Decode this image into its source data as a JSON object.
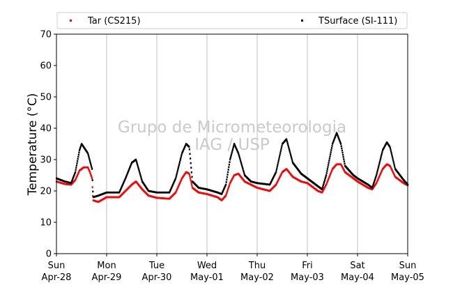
{
  "chart_data": {
    "type": "scatter",
    "title": "",
    "xlabel": "",
    "ylabel": "Temperature (°C)",
    "ylim": [
      0,
      70
    ],
    "yticks": [
      0,
      10,
      20,
      30,
      40,
      50,
      60,
      70
    ],
    "xlim": [
      "2019-04-28 00:00",
      "2019-05-05 00:00"
    ],
    "xtick_labels": [
      {
        "day": "Sun",
        "date": "Apr-28"
      },
      {
        "day": "Mon",
        "date": "Apr-29"
      },
      {
        "day": "Tue",
        "date": "Apr-30"
      },
      {
        "day": "Wed",
        "date": "May-01"
      },
      {
        "day": "Thu",
        "date": "May-02"
      },
      {
        "day": "Fri",
        "date": "May-03"
      },
      {
        "day": "Sat",
        "date": "May-04"
      },
      {
        "day": "Sun",
        "date": "May-05"
      }
    ],
    "grid": "vertical",
    "legend_position": "top",
    "watermark": [
      "Grupo de Micrometeorologia",
      "IAG / USP"
    ],
    "series": [
      {
        "name": "Tar (CS215)",
        "color": "#ff0000",
        "points": [
          [
            "2019-04-28 00:00",
            23.0
          ],
          [
            "2019-04-28 04:00",
            22.2
          ],
          [
            "2019-04-28 07:00",
            22.0
          ],
          [
            "2019-04-28 09:00",
            23.5
          ],
          [
            "2019-04-28 11:00",
            26.5
          ],
          [
            "2019-04-28 13:00",
            27.5
          ],
          [
            "2019-04-28 15:00",
            27.5
          ],
          [
            "2019-04-28 16:00",
            26.0
          ],
          [
            "2019-04-28 17:00",
            24.0
          ],
          [
            "2019-04-28 17:30",
            17.0
          ],
          [
            "2019-04-28 20:00",
            16.5
          ],
          [
            "2019-04-29 00:00",
            18.0
          ],
          [
            "2019-04-29 06:00",
            18.0
          ],
          [
            "2019-04-29 09:00",
            20.0
          ],
          [
            "2019-04-29 12:00",
            22.0
          ],
          [
            "2019-04-29 14:00",
            23.0
          ],
          [
            "2019-04-29 17:00",
            20.5
          ],
          [
            "2019-04-29 20:00",
            18.5
          ],
          [
            "2019-04-30 00:00",
            17.8
          ],
          [
            "2019-04-30 06:00",
            17.5
          ],
          [
            "2019-04-30 09:00",
            19.5
          ],
          [
            "2019-04-30 12:00",
            24.0
          ],
          [
            "2019-04-30 14:00",
            26.0
          ],
          [
            "2019-04-30 15:30",
            25.5
          ],
          [
            "2019-04-30 17:00",
            21.0
          ],
          [
            "2019-04-30 20:00",
            19.5
          ],
          [
            "2019-05-01 00:00",
            19.0
          ],
          [
            "2019-05-01 05:00",
            18.0
          ],
          [
            "2019-05-01 07:00",
            17.0
          ],
          [
            "2019-05-01 09:00",
            18.5
          ],
          [
            "2019-05-01 11:00",
            22.5
          ],
          [
            "2019-05-01 13:00",
            25.0
          ],
          [
            "2019-05-01 15:00",
            25.5
          ],
          [
            "2019-05-01 18:00",
            23.0
          ],
          [
            "2019-05-01 21:00",
            22.0
          ],
          [
            "2019-05-02 00:00",
            21.0
          ],
          [
            "2019-05-02 06:00",
            20.0
          ],
          [
            "2019-05-02 09:00",
            22.0
          ],
          [
            "2019-05-02 12:00",
            26.0
          ],
          [
            "2019-05-02 14:00",
            27.0
          ],
          [
            "2019-05-02 17:00",
            24.5
          ],
          [
            "2019-05-02 21:00",
            23.0
          ],
          [
            "2019-05-03 00:00",
            22.5
          ],
          [
            "2019-05-03 05:00",
            20.0
          ],
          [
            "2019-05-03 07:00",
            19.5
          ],
          [
            "2019-05-03 09:00",
            22.0
          ],
          [
            "2019-05-03 12:00",
            27.0
          ],
          [
            "2019-05-03 14:00",
            28.5
          ],
          [
            "2019-05-03 16:00",
            28.5
          ],
          [
            "2019-05-03 18:00",
            26.0
          ],
          [
            "2019-05-03 22:00",
            24.0
          ],
          [
            "2019-05-04 00:00",
            23.0
          ],
          [
            "2019-05-04 05:00",
            21.0
          ],
          [
            "2019-05-04 07:00",
            20.5
          ],
          [
            "2019-05-04 09:00",
            22.5
          ],
          [
            "2019-05-04 12:00",
            27.0
          ],
          [
            "2019-05-04 14:00",
            28.5
          ],
          [
            "2019-05-04 15:30",
            28.0
          ],
          [
            "2019-05-04 18:00",
            24.5
          ],
          [
            "2019-05-04 22:00",
            22.5
          ],
          [
            "2019-05-05 00:00",
            21.8
          ]
        ]
      },
      {
        "name": "TSurface (SI-111)",
        "color": "#000000",
        "points": [
          [
            "2019-04-28 00:00",
            24.0
          ],
          [
            "2019-04-28 04:00",
            23.0
          ],
          [
            "2019-04-28 07:00",
            22.5
          ],
          [
            "2019-04-28 09:00",
            26.0
          ],
          [
            "2019-04-28 11:00",
            33.0
          ],
          [
            "2019-04-28 12:00",
            35.0
          ],
          [
            "2019-04-28 13:00",
            34.0
          ],
          [
            "2019-04-28 15:00",
            32.0
          ],
          [
            "2019-04-28 17:00",
            27.0
          ],
          [
            "2019-04-28 17:30",
            18.0
          ],
          [
            "2019-04-28 20:00",
            18.5
          ],
          [
            "2019-04-29 00:00",
            19.5
          ],
          [
            "2019-04-29 06:00",
            19.5
          ],
          [
            "2019-04-29 09:00",
            24.0
          ],
          [
            "2019-04-29 12:00",
            29.0
          ],
          [
            "2019-04-29 14:00",
            30.0
          ],
          [
            "2019-04-29 17:00",
            23.0
          ],
          [
            "2019-04-29 20:00",
            20.0
          ],
          [
            "2019-04-30 00:00",
            19.5
          ],
          [
            "2019-04-30 06:00",
            19.5
          ],
          [
            "2019-04-30 09:00",
            24.0
          ],
          [
            "2019-04-30 12:00",
            32.0
          ],
          [
            "2019-04-30 14:00",
            35.0
          ],
          [
            "2019-04-30 15:30",
            34.0
          ],
          [
            "2019-04-30 17:00",
            23.0
          ],
          [
            "2019-04-30 20:00",
            21.0
          ],
          [
            "2019-05-01 00:00",
            20.5
          ],
          [
            "2019-05-01 05:00",
            19.5
          ],
          [
            "2019-05-01 07:00",
            19.0
          ],
          [
            "2019-05-01 09:00",
            22.0
          ],
          [
            "2019-05-01 11:00",
            30.0
          ],
          [
            "2019-05-01 13:00",
            35.0
          ],
          [
            "2019-05-01 15:00",
            32.0
          ],
          [
            "2019-05-01 18:00",
            25.0
          ],
          [
            "2019-05-01 21:00",
            23.0
          ],
          [
            "2019-05-02 00:00",
            22.5
          ],
          [
            "2019-05-02 06:00",
            22.0
          ],
          [
            "2019-05-02 09:00",
            26.0
          ],
          [
            "2019-05-02 12:00",
            35.0
          ],
          [
            "2019-05-02 14:00",
            36.5
          ],
          [
            "2019-05-02 17:00",
            29.0
          ],
          [
            "2019-05-02 21:00",
            25.5
          ],
          [
            "2019-05-03 00:00",
            24.0
          ],
          [
            "2019-05-03 05:00",
            21.5
          ],
          [
            "2019-05-03 07:00",
            20.5
          ],
          [
            "2019-05-03 09:00",
            25.0
          ],
          [
            "2019-05-03 12:00",
            35.0
          ],
          [
            "2019-05-03 14:00",
            38.5
          ],
          [
            "2019-05-03 16:00",
            35.0
          ],
          [
            "2019-05-03 18:00",
            28.0
          ],
          [
            "2019-05-03 22:00",
            25.0
          ],
          [
            "2019-05-04 00:00",
            24.0
          ],
          [
            "2019-05-04 05:00",
            22.0
          ],
          [
            "2019-05-04 07:00",
            21.0
          ],
          [
            "2019-05-04 09:00",
            25.0
          ],
          [
            "2019-05-04 12:00",
            33.0
          ],
          [
            "2019-05-04 14:00",
            35.5
          ],
          [
            "2019-05-04 15:30",
            34.0
          ],
          [
            "2019-05-04 18:00",
            27.0
          ],
          [
            "2019-05-04 22:00",
            23.5
          ],
          [
            "2019-05-05 00:00",
            22.0
          ]
        ]
      }
    ]
  }
}
